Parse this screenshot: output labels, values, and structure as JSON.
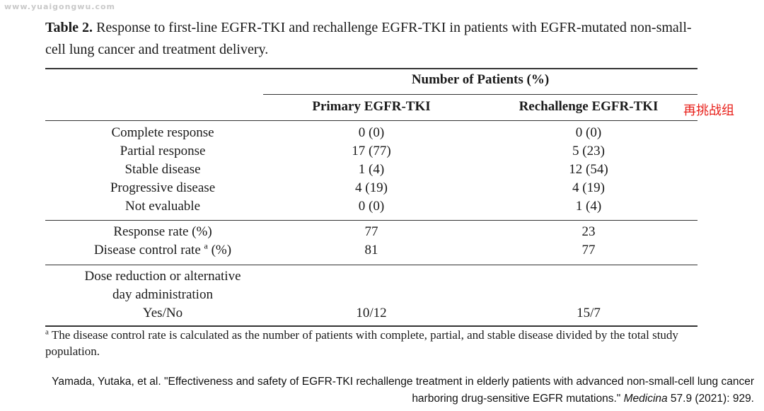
{
  "watermark": "www.yuaigongwu.com",
  "caption": {
    "label": "Table 2.",
    "text": " Response to first-line EGFR-TKI and rechallenge EGFR-TKI in patients with EGFR-mutated non-small-cell lung cancer and treatment delivery."
  },
  "table": {
    "group_header": "Number of Patients (%)",
    "columns": [
      "Primary EGFR-TKI",
      "Rechallenge EGFR-TKI"
    ],
    "side_note": "再挑战组",
    "rows": [
      {
        "label": "Complete response",
        "primary": "0 (0)",
        "rechallenge": "0 (0)"
      },
      {
        "label": "Partial response",
        "primary": "17 (77)",
        "rechallenge": "5 (23)"
      },
      {
        "label": "Stable disease",
        "primary": "1 (4)",
        "rechallenge": "12 (54)"
      },
      {
        "label": "Progressive disease",
        "primary": "4 (19)",
        "rechallenge": "4 (19)"
      },
      {
        "label": "Not evaluable",
        "primary": "0 (0)",
        "rechallenge": "1 (4)"
      },
      {
        "label": "Response rate (%)",
        "primary": "77",
        "rechallenge": "23"
      },
      {
        "label_prefix": "Disease control rate ",
        "label_sup": "a",
        "label_suffix": " (%)",
        "primary": "81",
        "rechallenge": "77"
      },
      {
        "label_line1": "Dose reduction or alternative",
        "label_line2": "day administration",
        "label_line3": "Yes/No",
        "primary": "10/12",
        "rechallenge": "15/7"
      }
    ]
  },
  "footnote": {
    "sup": "a",
    "text": " The disease control rate is calculated as the number of patients with complete, partial, and stable disease divided by the total study population."
  },
  "citation": {
    "prefix": "Yamada, Yutaka, et al. \"Effectiveness and safety of EGFR-TKI rechallenge treatment in elderly patients with advanced non-small-cell lung cancer harboring drug-sensitive EGFR mutations.\" ",
    "journal": "Medicina",
    "suffix": " 57.9 (2021): 929."
  }
}
